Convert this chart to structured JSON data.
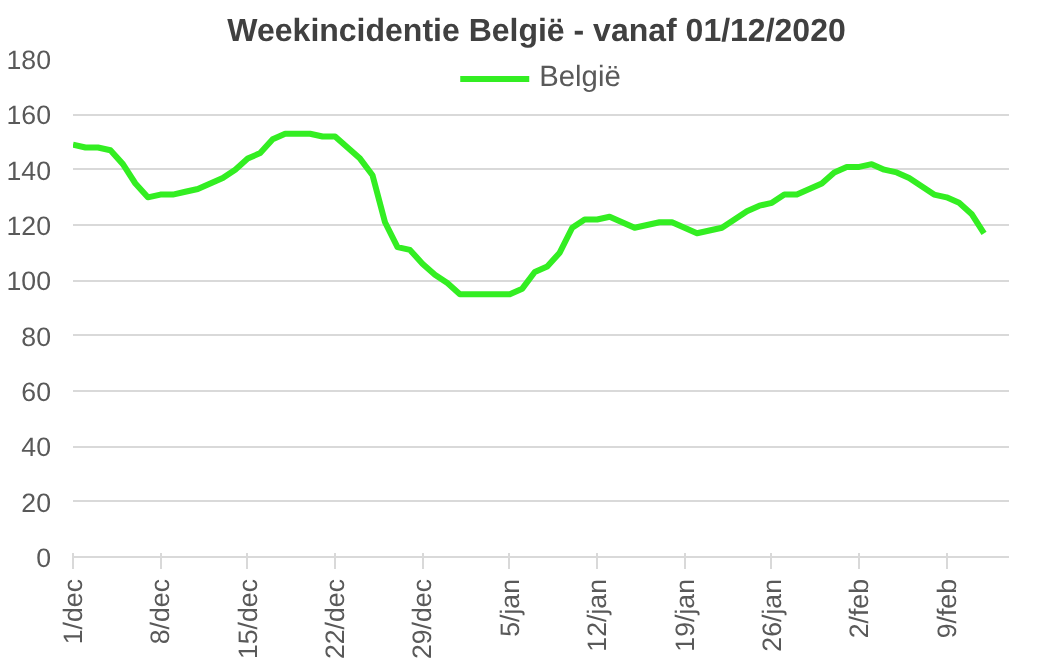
{
  "chart_data": {
    "type": "line",
    "title": "Weekincidentie  België - vanaf 01/12/2020",
    "x": [
      "2020-12-01",
      "2020-12-02",
      "2020-12-03",
      "2020-12-04",
      "2020-12-05",
      "2020-12-06",
      "2020-12-07",
      "2020-12-08",
      "2020-12-09",
      "2020-12-10",
      "2020-12-11",
      "2020-12-12",
      "2020-12-13",
      "2020-12-14",
      "2020-12-15",
      "2020-12-16",
      "2020-12-17",
      "2020-12-18",
      "2020-12-19",
      "2020-12-20",
      "2020-12-21",
      "2020-12-22",
      "2020-12-23",
      "2020-12-24",
      "2020-12-25",
      "2020-12-26",
      "2020-12-27",
      "2020-12-28",
      "2020-12-29",
      "2020-12-30",
      "2020-12-31",
      "2021-01-01",
      "2021-01-02",
      "2021-01-03",
      "2021-01-04",
      "2021-01-05",
      "2021-01-06",
      "2021-01-07",
      "2021-01-08",
      "2021-01-09",
      "2021-01-10",
      "2021-01-11",
      "2021-01-12",
      "2021-01-13",
      "2021-01-14",
      "2021-01-15",
      "2021-01-16",
      "2021-01-17",
      "2021-01-18",
      "2021-01-19",
      "2021-01-20",
      "2021-01-21",
      "2021-01-22",
      "2021-01-23",
      "2021-01-24",
      "2021-01-25",
      "2021-01-26",
      "2021-01-27",
      "2021-01-28",
      "2021-01-29",
      "2021-01-30",
      "2021-01-31",
      "2021-02-01",
      "2021-02-02",
      "2021-02-03",
      "2021-02-04",
      "2021-02-05",
      "2021-02-06",
      "2021-02-07",
      "2021-02-08",
      "2021-02-09",
      "2021-02-10",
      "2021-02-11",
      "2021-02-12"
    ],
    "series": [
      {
        "name": "België",
        "color": "#33ee22",
        "values": [
          149,
          148,
          148,
          147,
          142,
          135,
          130,
          131,
          131,
          132,
          133,
          135,
          137,
          140,
          144,
          146,
          151,
          153,
          153,
          153,
          152,
          152,
          148,
          144,
          138,
          121,
          112,
          111,
          106,
          102,
          99,
          95,
          95,
          95,
          95,
          95,
          97,
          103,
          105,
          110,
          119,
          122,
          122,
          123,
          121,
          119,
          120,
          121,
          121,
          119,
          117,
          118,
          119,
          122,
          125,
          127,
          128,
          131,
          131,
          133,
          135,
          139,
          141,
          141,
          142,
          140,
          139,
          137,
          134,
          131,
          130,
          128,
          124,
          117
        ]
      }
    ],
    "ylim": [
      0,
      180
    ],
    "yticks": [
      0,
      20,
      40,
      60,
      80,
      100,
      120,
      140,
      160,
      180
    ],
    "xlim": [
      "2020-12-01",
      "2021-02-14"
    ],
    "xticks": [
      {
        "value": "2020-12-01",
        "label": "1/dec"
      },
      {
        "value": "2020-12-08",
        "label": "8/dec"
      },
      {
        "value": "2020-12-15",
        "label": "15/dec"
      },
      {
        "value": "2020-12-22",
        "label": "22/dec"
      },
      {
        "value": "2020-12-29",
        "label": "29/dec"
      },
      {
        "value": "2021-01-05",
        "label": "5/jan"
      },
      {
        "value": "2021-01-12",
        "label": "12/jan"
      },
      {
        "value": "2021-01-19",
        "label": "19/jan"
      },
      {
        "value": "2021-01-26",
        "label": "26/jan"
      },
      {
        "value": "2021-02-02",
        "label": "2/feb"
      },
      {
        "value": "2021-02-09",
        "label": "9/feb"
      }
    ],
    "grid": "y",
    "legend": "top",
    "marker": "none",
    "line_style": "solid"
  }
}
